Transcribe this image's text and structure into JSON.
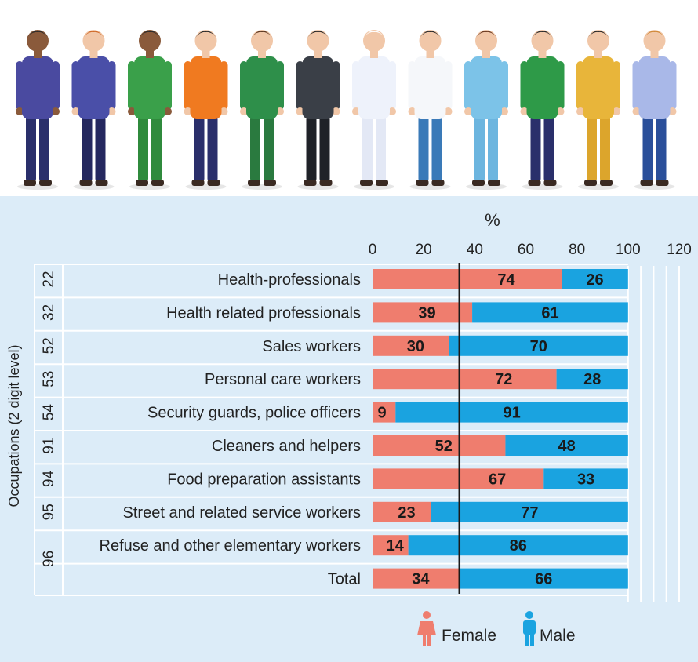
{
  "chart_data": {
    "type": "bar",
    "stacked": true,
    "orientation": "horizontal",
    "axis_title": "%",
    "xticks": [
      "0",
      "20",
      "40",
      "60",
      "80",
      "100",
      "120"
    ],
    "xlim": [
      0,
      120
    ],
    "ylabel": "Occupations (2 digit level)",
    "reference_line": 34,
    "rows": [
      {
        "code": "22",
        "label": "Health-professionals",
        "female": 74,
        "male": 26,
        "female_label": "74",
        "male_label": "26"
      },
      {
        "code": "32",
        "label": "Health related professionals",
        "female": 39,
        "male": 61,
        "female_label": "39",
        "male_label": "61"
      },
      {
        "code": "52",
        "label": "Sales workers",
        "female": 30,
        "male": 70,
        "female_label": "30",
        "male_label": "70"
      },
      {
        "code": "53",
        "label": "Personal care workers",
        "female": 72,
        "male": 28,
        "female_label": "72",
        "male_label": "28"
      },
      {
        "code": "54",
        "label": "Security guards, police officers",
        "female": 9,
        "male": 91,
        "female_label": "9",
        "male_label": "91"
      },
      {
        "code": "91",
        "label": "Cleaners and helpers",
        "female": 52,
        "male": 48,
        "female_label": "52",
        "male_label": "48"
      },
      {
        "code": "94",
        "label": "Food preparation assistants",
        "female": 67,
        "male": 33,
        "female_label": "67",
        "male_label": "33"
      },
      {
        "code": "95",
        "label": "Street and related service workers",
        "female": 23,
        "male": 77,
        "female_label": "23",
        "male_label": "77"
      },
      {
        "code": "96",
        "label": "Refuse and other elementary workers",
        "female": 14,
        "male": 86,
        "female_label": "14",
        "male_label": "86"
      },
      {
        "code": "",
        "label": "Total",
        "female": 34,
        "male": 66,
        "female_label": "34",
        "male_label": "66"
      }
    ],
    "legend": {
      "female": "Female",
      "male": "Male"
    },
    "colors": {
      "female": "#ef7d6e",
      "male": "#1aa3e0",
      "background": "#dcecf8",
      "text": "#222222",
      "ref_line": "#1a1a1a"
    }
  },
  "illustration": {
    "figures": [
      {
        "name": "gardener",
        "skin": "#8a5a3b",
        "hair": "#2b2b2b",
        "top": "#4a4aa0",
        "pants": "#2a2f6b"
      },
      {
        "name": "clerk",
        "skin": "#f1c7a8",
        "hair": "#d06a2a",
        "top": "#4a4fa8",
        "pants": "#25285f"
      },
      {
        "name": "farmer",
        "skin": "#8a5a3b",
        "hair": "#2b2b2b",
        "top": "#3aa04a",
        "pants": "#2f8a3c"
      },
      {
        "name": "road-worker",
        "skin": "#f1c7a8",
        "hair": "#2b2b2b",
        "top": "#f07a20",
        "pants": "#2a2f6b"
      },
      {
        "name": "postal-worker",
        "skin": "#f1c7a8",
        "hair": "#5a3620",
        "top": "#2e8f4a",
        "pants": "#2a7a3f"
      },
      {
        "name": "police-officer",
        "skin": "#f1c7a8",
        "hair": "#2b2b2b",
        "top": "#3a3f47",
        "pants": "#1f2228"
      },
      {
        "name": "hazmat-worker",
        "skin": "#f1c7a8",
        "hair": "#ffffff",
        "top": "#eef2fb",
        "pants": "#e3e8f5"
      },
      {
        "name": "doctor",
        "skin": "#f1c7a8",
        "hair": "#2b2b2b",
        "top": "#f5f7fa",
        "pants": "#3a7ab8"
      },
      {
        "name": "nurse",
        "skin": "#f1c7a8",
        "hair": "#6a3a22",
        "top": "#7cc3e8",
        "pants": "#6cb5df"
      },
      {
        "name": "delivery-worker",
        "skin": "#f1c7a8",
        "hair": "#2b2b2b",
        "top": "#2e9a48",
        "pants": "#2a2f6b"
      },
      {
        "name": "firefighter",
        "skin": "#f1c7a8",
        "hair": "#2b2b2b",
        "top": "#e8b53a",
        "pants": "#dca52c"
      },
      {
        "name": "mail-carrier",
        "skin": "#f1c7a8",
        "hair": "#d08a3a",
        "top": "#a9b8e8",
        "pants": "#2a4f9a"
      }
    ]
  }
}
